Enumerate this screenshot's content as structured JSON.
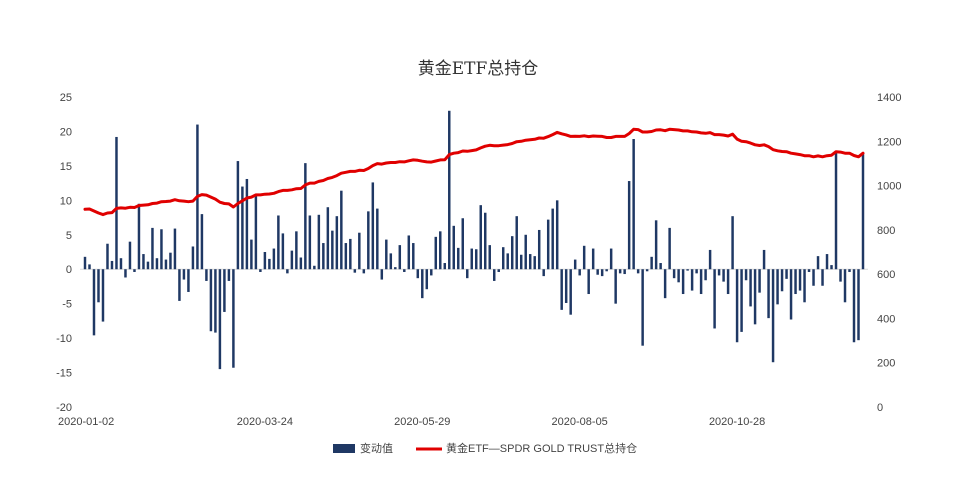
{
  "chart_data": {
    "type": "bar+line",
    "title": "黄金ETF总持仓",
    "x_tick_labels": [
      "2020-01-02",
      "2020-03-24",
      "2020-05-29",
      "2020-08-05",
      "2020-10-28"
    ],
    "x_tick_indices": [
      0,
      40,
      75,
      110,
      145
    ],
    "y_left": {
      "min": -20,
      "max": 25,
      "ticks": [
        -20,
        -15,
        -10,
        -5,
        0,
        5,
        10,
        15,
        20,
        25
      ]
    },
    "y_right": {
      "min": 0,
      "max": 1400,
      "ticks": [
        0,
        200,
        400,
        600,
        800,
        1000,
        1200,
        1400
      ]
    },
    "series": [
      {
        "name": "变动值",
        "type": "bar",
        "axis": "left",
        "color": "#1f3864",
        "values": [
          1.8,
          0.7,
          -9.6,
          -4.8,
          -7.6,
          3.7,
          1.2,
          19.2,
          1.6,
          -1.2,
          4.0,
          -0.4,
          9.5,
          2.2,
          1.1,
          6.0,
          1.6,
          5.8,
          1.4,
          2.4,
          5.9,
          -4.6,
          -1.5,
          -3.3,
          3.3,
          21.0,
          8.0,
          -1.7,
          -9.0,
          -9.2,
          -14.5,
          -6.2,
          -1.7,
          -14.3,
          15.7,
          12.0,
          13.1,
          4.3,
          10.7,
          -0.4,
          2.5,
          1.5,
          3.0,
          7.8,
          5.2,
          -0.6,
          2.7,
          5.5,
          1.7,
          15.4,
          7.8,
          0.5,
          7.9,
          3.8,
          9.0,
          5.6,
          7.7,
          11.4,
          3.8,
          4.4,
          -0.5,
          5.3,
          -0.6,
          8.4,
          12.6,
          8.8,
          -1.5,
          4.3,
          2.3,
          0.3,
          3.5,
          -0.4,
          4.9,
          3.8,
          -1.3,
          -4.2,
          -2.9,
          -0.9,
          4.7,
          5.5,
          0.9,
          23.0,
          6.3,
          3.1,
          7.4,
          -1.3,
          3.0,
          2.9,
          9.3,
          8.2,
          3.5,
          -1.7,
          -0.4,
          3.2,
          2.3,
          4.8,
          7.7,
          2.1,
          5.0,
          2.2,
          1.9,
          5.7,
          -1.0,
          7.2,
          8.8,
          10.0,
          -5.9,
          -4.9,
          -6.6,
          1.4,
          -0.9,
          3.4,
          -3.6,
          3.0,
          -0.8,
          -1.0,
          -0.3,
          3.0,
          -5.0,
          -0.6,
          -0.7,
          12.8,
          18.9,
          -0.6,
          -11.1,
          -0.3,
          1.8,
          7.1,
          0.9,
          -4.2,
          6.0,
          -1.3,
          -1.9,
          -3.6,
          -0.2,
          -3.1,
          -0.6,
          -3.6,
          -1.6,
          2.8,
          -8.6,
          -0.9,
          -1.8,
          -3.6,
          7.7,
          -10.6,
          -9.1,
          -1.6,
          -5.4,
          -8.0,
          -3.4,
          2.8,
          -7.1,
          -13.5,
          -5.1,
          -3.2,
          -1.4,
          -7.3,
          -3.6,
          -3.1,
          -4.8,
          -0.4,
          -2.4,
          1.9,
          -2.4,
          2.2,
          0.6,
          17.1,
          -1.8,
          -4.8,
          -0.4,
          -10.6,
          -10.3,
          16.7
        ]
      },
      {
        "name": "黄金ETF—SPDR GOLD TRUST总持仓",
        "type": "line",
        "axis": "right",
        "color": "#e00000",
        "values": [
          893,
          894,
          885,
          876,
          869,
          876,
          878,
          897,
          899,
          898,
          902,
          901,
          910,
          912,
          913,
          919,
          921,
          927,
          928,
          930,
          936,
          931,
          930,
          927,
          930,
          951,
          959,
          957,
          948,
          939,
          925,
          919,
          917,
          903,
          919,
          931,
          944,
          948,
          958,
          958,
          961,
          962,
          965,
          973,
          978,
          978,
          981,
          986,
          987,
          1003,
          1011,
          1011,
          1019,
          1023,
          1032,
          1037,
          1045,
          1056,
          1060,
          1064,
          1064,
          1069,
          1068,
          1077,
          1090,
          1099,
          1097,
          1102,
          1104,
          1104,
          1108,
          1107,
          1112,
          1116,
          1114,
          1110,
          1107,
          1106,
          1111,
          1116,
          1117,
          1140,
          1146,
          1149,
          1156,
          1155,
          1158,
          1161,
          1170,
          1178,
          1182,
          1180,
          1180,
          1183,
          1185,
          1190,
          1198,
          1200,
          1205,
          1207,
          1209,
          1215,
          1214,
          1221,
          1230,
          1240,
          1234,
          1229,
          1222,
          1223,
          1222,
          1225,
          1221,
          1224,
          1223,
          1222,
          1217,
          1217,
          1222,
          1222,
          1222,
          1235,
          1254,
          1253,
          1242,
          1242,
          1244,
          1251,
          1252,
          1248,
          1254,
          1253,
          1251,
          1247,
          1247,
          1243,
          1242,
          1238,
          1236,
          1239,
          1230,
          1230,
          1228,
          1224,
          1232,
          1210,
          1200,
          1198,
          1192,
          1184,
          1181,
          1184,
          1176,
          1162,
          1157,
          1154,
          1153,
          1146,
          1143,
          1140,
          1135,
          1135,
          1130,
          1134,
          1130,
          1135,
          1137,
          1153,
          1151,
          1146,
          1146,
          1136,
          1130,
          1146
        ]
      }
    ],
    "legend": {
      "placement": "bottom"
    },
    "grid": false
  }
}
